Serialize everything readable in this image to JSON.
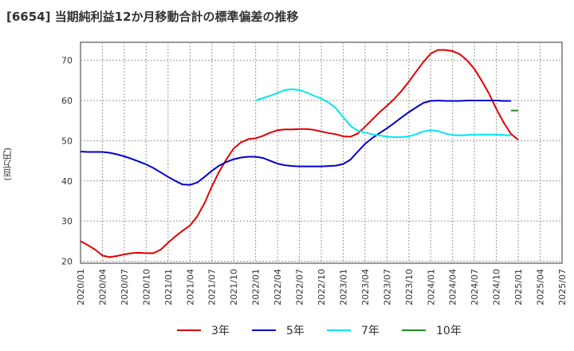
{
  "chart_data": {
    "type": "line",
    "title": "[6654]  当期純利益12か月移動合計の標準偏差の推移",
    "ylabel": "(百万円)",
    "xlabel": "",
    "ylim": [
      19.5,
      74.5
    ],
    "yticks": [
      20,
      30,
      40,
      50,
      60,
      70
    ],
    "x_ticks": [
      "2020/01",
      "2020/04",
      "2020/07",
      "2020/10",
      "2021/01",
      "2021/04",
      "2021/07",
      "2021/10",
      "2022/01",
      "2022/04",
      "2022/07",
      "2022/10",
      "2023/01",
      "2023/04",
      "2023/07",
      "2023/10",
      "2024/01",
      "2024/04",
      "2024/07",
      "2024/10",
      "2025/01",
      "2025/04",
      "2025/07"
    ],
    "x_start": "2020/01",
    "grid": true,
    "legend_position": "bottom",
    "series": [
      {
        "name": "3年",
        "color": "#e00000",
        "start_month_index": 0,
        "values": [
          25,
          24,
          22.9,
          21.4,
          21,
          21.3,
          21.7,
          22,
          22.1,
          22,
          22,
          22.9,
          24.6,
          26.2,
          27.6,
          28.9,
          31.2,
          34.5,
          38.6,
          42.3,
          45.4,
          48.1,
          49.6,
          50.4,
          50.6,
          51.2,
          52,
          52.6,
          52.8,
          52.8,
          52.9,
          52.9,
          52.7,
          52.3,
          51.9,
          51.6,
          51.1,
          51,
          51.8,
          53.5,
          55.3,
          57.1,
          58.7,
          60.4,
          62.4,
          64.7,
          67.2,
          69.6,
          71.7,
          72.6,
          72.6,
          72.3,
          71.5,
          70,
          67.8,
          64.9,
          61.7,
          57.9,
          54.5,
          51.7,
          50.2
        ]
      },
      {
        "name": "5年",
        "color": "#0000cc",
        "start_month_index": 0,
        "values": [
          47.3,
          47.2,
          47.2,
          47.2,
          47,
          46.6,
          46.1,
          45.5,
          44.8,
          44.1,
          43.2,
          42.1,
          41,
          40,
          39.1,
          39,
          39.6,
          41,
          42.5,
          43.8,
          44.7,
          45.4,
          45.8,
          46,
          46,
          45.7,
          45,
          44.3,
          43.9,
          43.7,
          43.6,
          43.6,
          43.6,
          43.6,
          43.7,
          43.8,
          44.2,
          45.3,
          47.3,
          49.2,
          50.7,
          51.9,
          53.1,
          54.4,
          55.8,
          57.1,
          58.3,
          59.4,
          59.9,
          60,
          59.9,
          59.9,
          59.9,
          60,
          60,
          60,
          60,
          60,
          59.9,
          59.9
        ]
      },
      {
        "name": "7年",
        "color": "#00e5ee",
        "start_month_index": 24,
        "values": [
          60,
          60.6,
          61.2,
          61.9,
          62.6,
          62.8,
          62.6,
          62,
          61.2,
          60.5,
          59.5,
          58.1,
          55.9,
          53.7,
          52.5,
          52,
          51.6,
          51.3,
          51,
          50.9,
          50.9,
          51.1,
          51.6,
          52.3,
          52.6,
          52.4,
          51.8,
          51.4,
          51.3,
          51.4,
          51.5,
          51.5,
          51.5,
          51.5,
          51.4,
          51.3
        ]
      },
      {
        "name": "10年",
        "color": "#228b22",
        "start_month_index": 59,
        "values": [
          57.5,
          57.5
        ]
      }
    ]
  }
}
